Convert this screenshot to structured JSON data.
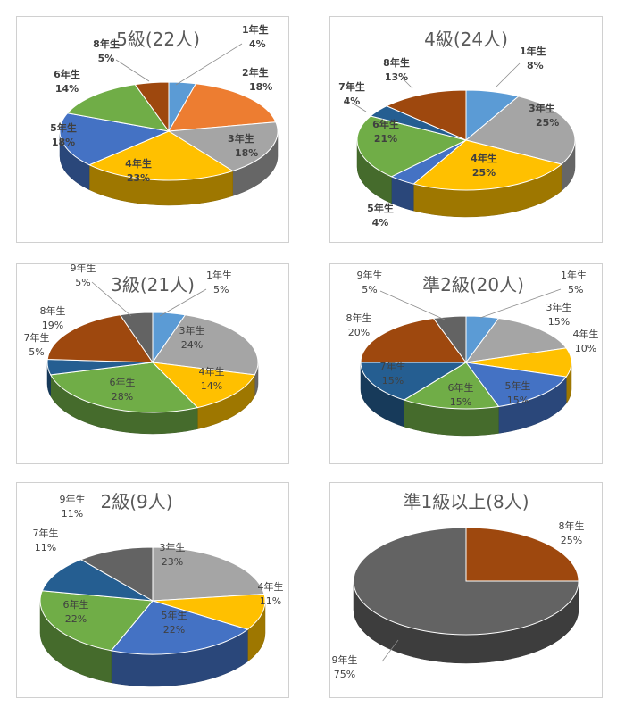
{
  "charts": [
    {
      "title": "5級(22人)",
      "chart_data": {
        "type": "pie",
        "title": "5級(22人)",
        "categories": [
          "1年生",
          "2年生",
          "3年生",
          "4年生",
          "5年生",
          "6年生",
          "8年生"
        ],
        "values": [
          4,
          18,
          18,
          23,
          18,
          14,
          5
        ],
        "value_labels": [
          "4%",
          "18%",
          "18%",
          "23%",
          "18%",
          "14%",
          "5%"
        ]
      }
    },
    {
      "title": "4級(24人)",
      "chart_data": {
        "type": "pie",
        "title": "4級(24人)",
        "categories": [
          "1年生",
          "3年生",
          "4年生",
          "5年生",
          "6年生",
          "7年生",
          "8年生"
        ],
        "values": [
          8,
          25,
          25,
          4,
          21,
          4,
          13
        ],
        "value_labels": [
          "8%",
          "25%",
          "25%",
          "4%",
          "21%",
          "4%",
          "13%"
        ]
      }
    },
    {
      "title": "3級(21人)",
      "chart_data": {
        "type": "pie",
        "title": "3級(21人)",
        "categories": [
          "1年生",
          "3年生",
          "4年生",
          "6年生",
          "7年生",
          "8年生",
          "9年生"
        ],
        "values": [
          5,
          24,
          14,
          28,
          5,
          19,
          5
        ],
        "value_labels": [
          "5%",
          "24%",
          "14%",
          "28%",
          "5%",
          "19%",
          "5%"
        ]
      }
    },
    {
      "title": "準2級(20人)",
      "chart_data": {
        "type": "pie",
        "title": "準2級(20人)",
        "categories": [
          "1年生",
          "3年生",
          "4年生",
          "5年生",
          "6年生",
          "7年生",
          "8年生",
          "9年生"
        ],
        "values": [
          5,
          15,
          10,
          15,
          15,
          15,
          20,
          5
        ],
        "value_labels": [
          "5%",
          "15%",
          "10%",
          "15%",
          "15%",
          "15%",
          "20%",
          "5%"
        ]
      }
    },
    {
      "title": "2級(9人)",
      "chart_data": {
        "type": "pie",
        "title": "2級(9人)",
        "categories": [
          "3年生",
          "4年生",
          "5年生",
          "6年生",
          "7年生",
          "9年生"
        ],
        "values": [
          23,
          11,
          22,
          22,
          11,
          11
        ],
        "value_labels": [
          "23%",
          "11%",
          "22%",
          "22%",
          "11%",
          "11%"
        ]
      }
    },
    {
      "title": "準1級以上(8人)",
      "chart_data": {
        "type": "pie",
        "title": "準1級以上(8人)",
        "categories": [
          "8年生",
          "9年生"
        ],
        "values": [
          25,
          75
        ],
        "value_labels": [
          "25%",
          "75%"
        ]
      }
    }
  ],
  "colors": {
    "1年生": "#5b9bd5",
    "2年生": "#ed7d31",
    "3年生": "#a5a5a5",
    "4年生": "#ffc000",
    "5年生": "#4472c4",
    "6年生": "#70ad47",
    "7年生": "#255e91",
    "8年生": "#9e480e",
    "9年生": "#636363"
  }
}
